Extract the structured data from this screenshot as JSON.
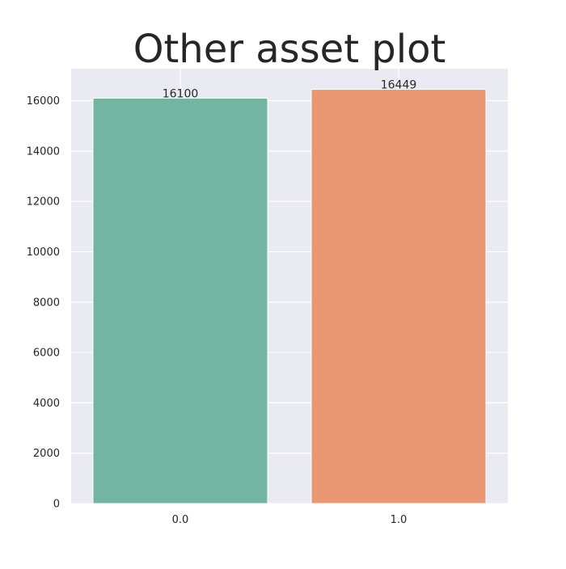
{
  "chart_data": {
    "type": "bar",
    "title": "Other asset plot",
    "xlabel": "",
    "ylabel": "",
    "categories": [
      "0.0",
      "1.0"
    ],
    "values": [
      16100,
      16449
    ],
    "data_labels": [
      "16100",
      "16449"
    ],
    "colors": [
      "#73b5a0",
      "#e99775"
    ],
    "ylim": [
      0,
      17270
    ],
    "yticks": [
      0,
      2000,
      4000,
      6000,
      8000,
      10000,
      12000,
      14000,
      16000
    ],
    "ytick_labels": [
      "0",
      "2000",
      "4000",
      "6000",
      "8000",
      "10000",
      "12000",
      "14000",
      "16000"
    ],
    "grid": true,
    "legend": "none",
    "background_color": "#eaeaf2",
    "grid_color": "#ffffff"
  }
}
